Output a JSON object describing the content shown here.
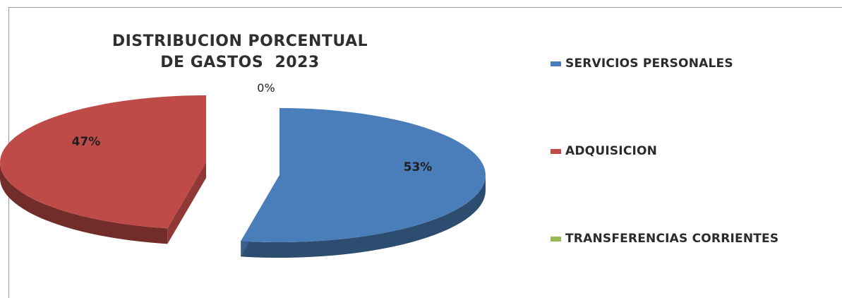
{
  "chart_data": {
    "type": "pie",
    "title_lines": [
      "DISTRIBUCION PORCENTUAL",
      "DE GASTOS  2023"
    ],
    "categories": [
      "SERVICIOS PERSONALES",
      "ADQUISICION",
      "TRANSFERENCIAS CORRIENTES"
    ],
    "values": [
      53,
      47,
      0
    ],
    "data_labels": [
      "53%",
      "47%",
      "0%"
    ],
    "colors": [
      "#4a7ebb",
      "#be4b48",
      "#98b954"
    ],
    "exploded": true,
    "three_d": true,
    "legend_position": "right"
  }
}
